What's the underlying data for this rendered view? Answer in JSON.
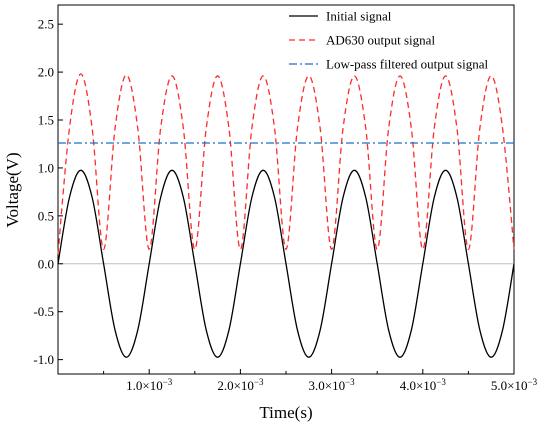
{
  "chart_data": {
    "type": "line",
    "title": "",
    "xlabel": "Time(s)",
    "ylabel": "Voltage(V)",
    "xlim": [
      0,
      0.005
    ],
    "ylim": [
      -1.15,
      2.7
    ],
    "x_ticks": [
      {
        "value": 0.001,
        "mantissa": "1.0",
        "exp": "−3"
      },
      {
        "value": 0.002,
        "mantissa": "2.0",
        "exp": "−3"
      },
      {
        "value": 0.003,
        "mantissa": "3.0",
        "exp": "−3"
      },
      {
        "value": 0.004,
        "mantissa": "4.0",
        "exp": "−3"
      },
      {
        "value": 0.005,
        "mantissa": "5.0",
        "exp": "−3"
      }
    ],
    "x_tick_times": "×10",
    "y_ticks": [
      {
        "value": -1.0,
        "label": "-1.0"
      },
      {
        "value": -0.5,
        "label": "-0.5"
      },
      {
        "value": 0.0,
        "label": "0.0"
      },
      {
        "value": 0.5,
        "label": "0.5"
      },
      {
        "value": 1.0,
        "label": "1.0"
      },
      {
        "value": 1.5,
        "label": "1.5"
      },
      {
        "value": 2.0,
        "label": "2.0"
      },
      {
        "value": 2.5,
        "label": "2.5"
      }
    ],
    "zero_line": true,
    "legend_position": "top-right",
    "series": [
      {
        "name": "Initial signal",
        "color": "#000000",
        "dash": "solid",
        "x": [
          0,
          0.000125,
          0.00025,
          0.000375,
          0.0005,
          0.000625,
          0.00075,
          0.000875,
          0.001,
          0.001125,
          0.00125,
          0.001375,
          0.0015,
          0.001625,
          0.00175,
          0.001875,
          0.002,
          0.002125,
          0.00225,
          0.002375,
          0.0025,
          0.002625,
          0.00275,
          0.002875,
          0.003,
          0.003125,
          0.00325,
          0.003375,
          0.0035,
          0.003625,
          0.00375,
          0.003875,
          0.004,
          0.004125,
          0.00425,
          0.004375,
          0.0045,
          0.004625,
          0.00475,
          0.004875,
          0.005
        ],
        "y": [
          0,
          0.69,
          0.975,
          0.69,
          0,
          -0.69,
          -0.975,
          -0.69,
          0,
          0.69,
          0.975,
          0.69,
          0,
          -0.69,
          -0.975,
          -0.69,
          0,
          0.69,
          0.975,
          0.69,
          0,
          -0.69,
          -0.975,
          -0.69,
          0,
          0.69,
          0.975,
          0.69,
          0,
          -0.69,
          -0.975,
          -0.69,
          0,
          0.69,
          0.975,
          0.69,
          0,
          -0.69,
          -0.975,
          -0.69,
          0
        ]
      },
      {
        "name": "AD630 output signal",
        "color": "#ff2a2a",
        "dash": "dashed",
        "x": [
          0,
          0.000125,
          0.00025,
          0.000375,
          0.0005,
          0.000625,
          0.00075,
          0.000875,
          0.001,
          0.001125,
          0.00125,
          0.001375,
          0.0015,
          0.001625,
          0.00175,
          0.001875,
          0.002,
          0.002125,
          0.00225,
          0.002375,
          0.0025,
          0.002625,
          0.00275,
          0.002875,
          0.003,
          0.003125,
          0.00325,
          0.003375,
          0.0035,
          0.003625,
          0.00375,
          0.003875,
          0.004,
          0.004125,
          0.00425,
          0.004375,
          0.0045,
          0.004625,
          0.00475,
          0.004875,
          0.005
        ],
        "y": [
          0.1,
          1.41,
          1.98,
          1.41,
          0.15,
          1.41,
          1.97,
          1.41,
          0.15,
          1.41,
          1.96,
          1.41,
          0.15,
          1.41,
          1.96,
          1.41,
          0.15,
          1.41,
          1.96,
          1.41,
          0.15,
          1.41,
          1.96,
          1.41,
          0.15,
          1.41,
          1.96,
          1.41,
          0.15,
          1.41,
          1.96,
          1.41,
          0.15,
          1.41,
          1.96,
          1.41,
          0.15,
          1.41,
          1.96,
          1.41,
          0.15
        ]
      },
      {
        "name": "Low-pass filtered output signal",
        "color": "#1a6fc9",
        "dash": "dashdot",
        "x": [
          0,
          0.005
        ],
        "y": [
          1.26,
          1.26
        ]
      }
    ]
  }
}
